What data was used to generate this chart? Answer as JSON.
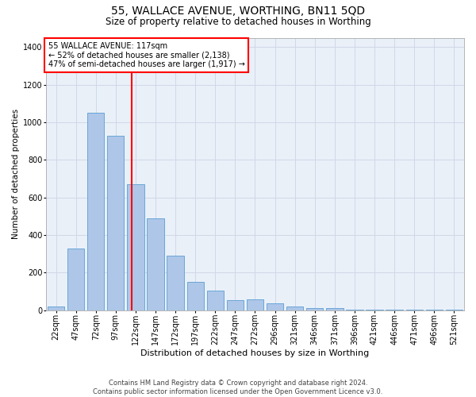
{
  "title": "55, WALLACE AVENUE, WORTHING, BN11 5QD",
  "subtitle": "Size of property relative to detached houses in Worthing",
  "xlabel": "Distribution of detached houses by size in Worthing",
  "ylabel": "Number of detached properties",
  "footer_line1": "Contains HM Land Registry data © Crown copyright and database right 2024.",
  "footer_line2": "Contains public sector information licensed under the Open Government Licence v3.0.",
  "annotation_line1": "55 WALLACE AVENUE: 117sqm",
  "annotation_line2": "← 52% of detached houses are smaller (2,138)",
  "annotation_line3": "47% of semi-detached houses are larger (1,917) →",
  "bar_color": "#aec6e8",
  "bar_edge_color": "#5a9fd4",
  "vline_color": "red",
  "categories": [
    "22sqm",
    "47sqm",
    "72sqm",
    "97sqm",
    "122sqm",
    "147sqm",
    "172sqm",
    "197sqm",
    "222sqm",
    "247sqm",
    "272sqm",
    "296sqm",
    "321sqm",
    "346sqm",
    "371sqm",
    "396sqm",
    "421sqm",
    "446sqm",
    "471sqm",
    "496sqm",
    "521sqm"
  ],
  "values": [
    20,
    330,
    1050,
    930,
    670,
    490,
    290,
    150,
    105,
    55,
    60,
    35,
    20,
    10,
    10,
    5,
    5,
    5,
    5,
    5,
    5
  ],
  "ylim": [
    0,
    1450
  ],
  "yticks": [
    0,
    200,
    400,
    600,
    800,
    1000,
    1200,
    1400
  ],
  "vline_x_index": 3.8,
  "grid_color": "#d0d8e8",
  "background_color": "#eaf0f8",
  "title_fontsize": 10,
  "subtitle_fontsize": 8.5,
  "xlabel_fontsize": 8,
  "ylabel_fontsize": 7.5,
  "tick_fontsize": 7,
  "annotation_fontsize": 7,
  "footer_fontsize": 6
}
